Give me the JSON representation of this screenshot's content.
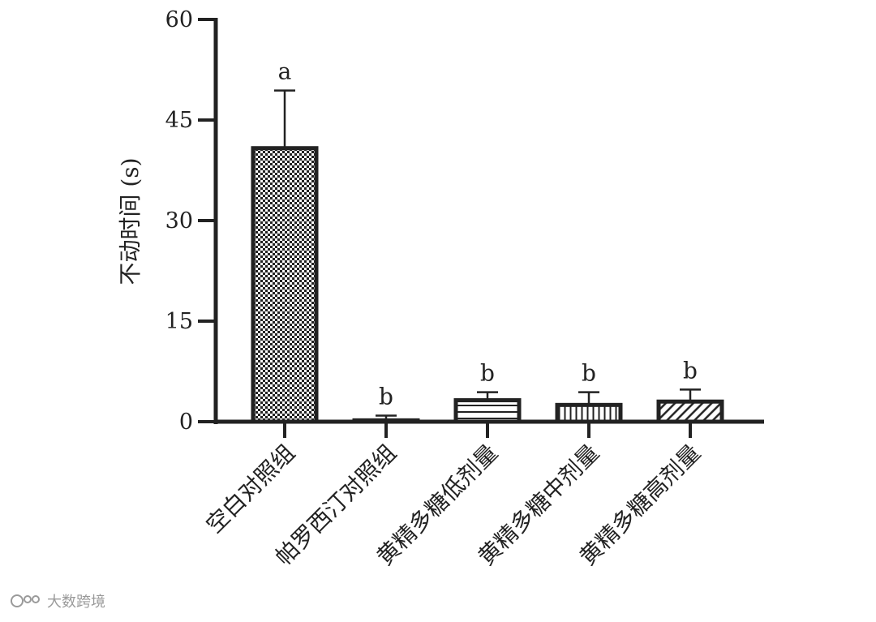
{
  "chart_data": {
    "type": "bar",
    "ylabel": "不动时间 (s)",
    "xlabel": "",
    "title": "",
    "ylim": [
      0,
      60
    ],
    "yticks": [
      0,
      15,
      30,
      45,
      60
    ],
    "categories": [
      "空白对照组",
      "帕罗西汀对照组",
      "黄精多糖低剂量",
      "黄精多糖中剂量",
      "黄精多糖高剂量"
    ],
    "values": [
      40.8,
      0.2,
      3.2,
      2.5,
      3.0
    ],
    "errors": [
      8.6,
      0.7,
      1.2,
      1.9,
      1.8
    ],
    "significance": [
      "a",
      "b",
      "b",
      "b",
      "b"
    ],
    "patterns": [
      "checkerboard",
      "none",
      "horizontal-lines",
      "vertical-lines",
      "diagonal-lines"
    ],
    "grid": false,
    "legend": "none"
  },
  "watermark": {
    "text": "大数跨境",
    "icon": "logo-icon"
  },
  "colors": {
    "ink": "#222222",
    "watermark": "#9a9a9a"
  }
}
